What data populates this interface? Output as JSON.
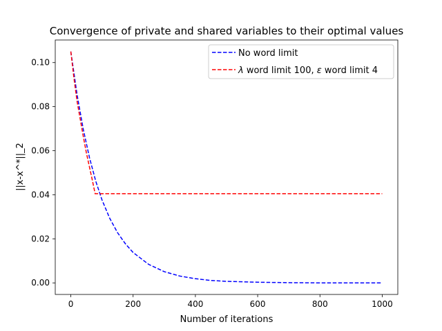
{
  "chart_data": {
    "type": "line",
    "title": "Convergence of private and shared variables to their optimal values",
    "xlabel": "Number of iterations",
    "ylabel": "||x-x^*||_2",
    "xlim": [
      -50,
      1050
    ],
    "ylim": [
      -0.00525,
      0.11025
    ],
    "xticks": [
      0,
      200,
      400,
      600,
      800,
      1000
    ],
    "xtick_labels": [
      "0",
      "200",
      "400",
      "600",
      "800",
      "1000"
    ],
    "yticks": [
      0.0,
      0.02,
      0.04,
      0.06,
      0.08,
      0.1
    ],
    "ytick_labels": [
      "0.00",
      "0.02",
      "0.04",
      "0.06",
      "0.08",
      "0.10"
    ],
    "grid": false,
    "legend_position": "upper right",
    "series": [
      {
        "name": "No word limit",
        "color": "#0000ff",
        "style": "dashed",
        "x": [
          0,
          20,
          40,
          60,
          80,
          100,
          125,
          150,
          175,
          200,
          250,
          300,
          350,
          400,
          450,
          500,
          600,
          700,
          800,
          900,
          1000
        ],
        "y": [
          0.105,
          0.0855,
          0.0697,
          0.0568,
          0.0462,
          0.0377,
          0.0293,
          0.0228,
          0.0178,
          0.0138,
          0.0084,
          0.0051,
          0.0031,
          0.0019,
          0.0011,
          0.0007,
          0.0003,
          0.0001,
          0.0,
          0.0,
          0.0
        ]
      },
      {
        "name": "λ word limit 100, ε word limit 4",
        "legend_prefix_symbol": "λ",
        "legend_mid_text": " word limit 100, ",
        "legend_mid_symbol": "ε",
        "legend_suffix_text": " word limit 4",
        "color": "#ff0000",
        "style": "dashed",
        "x": [
          0,
          10,
          20,
          30,
          40,
          50,
          60,
          70,
          78,
          100,
          200,
          400,
          600,
          800,
          1000
        ],
        "y": [
          0.105,
          0.093,
          0.0825,
          0.0745,
          0.0665,
          0.059,
          0.0525,
          0.046,
          0.0405,
          0.0405,
          0.0405,
          0.0405,
          0.0405,
          0.0405,
          0.0405
        ]
      }
    ]
  }
}
